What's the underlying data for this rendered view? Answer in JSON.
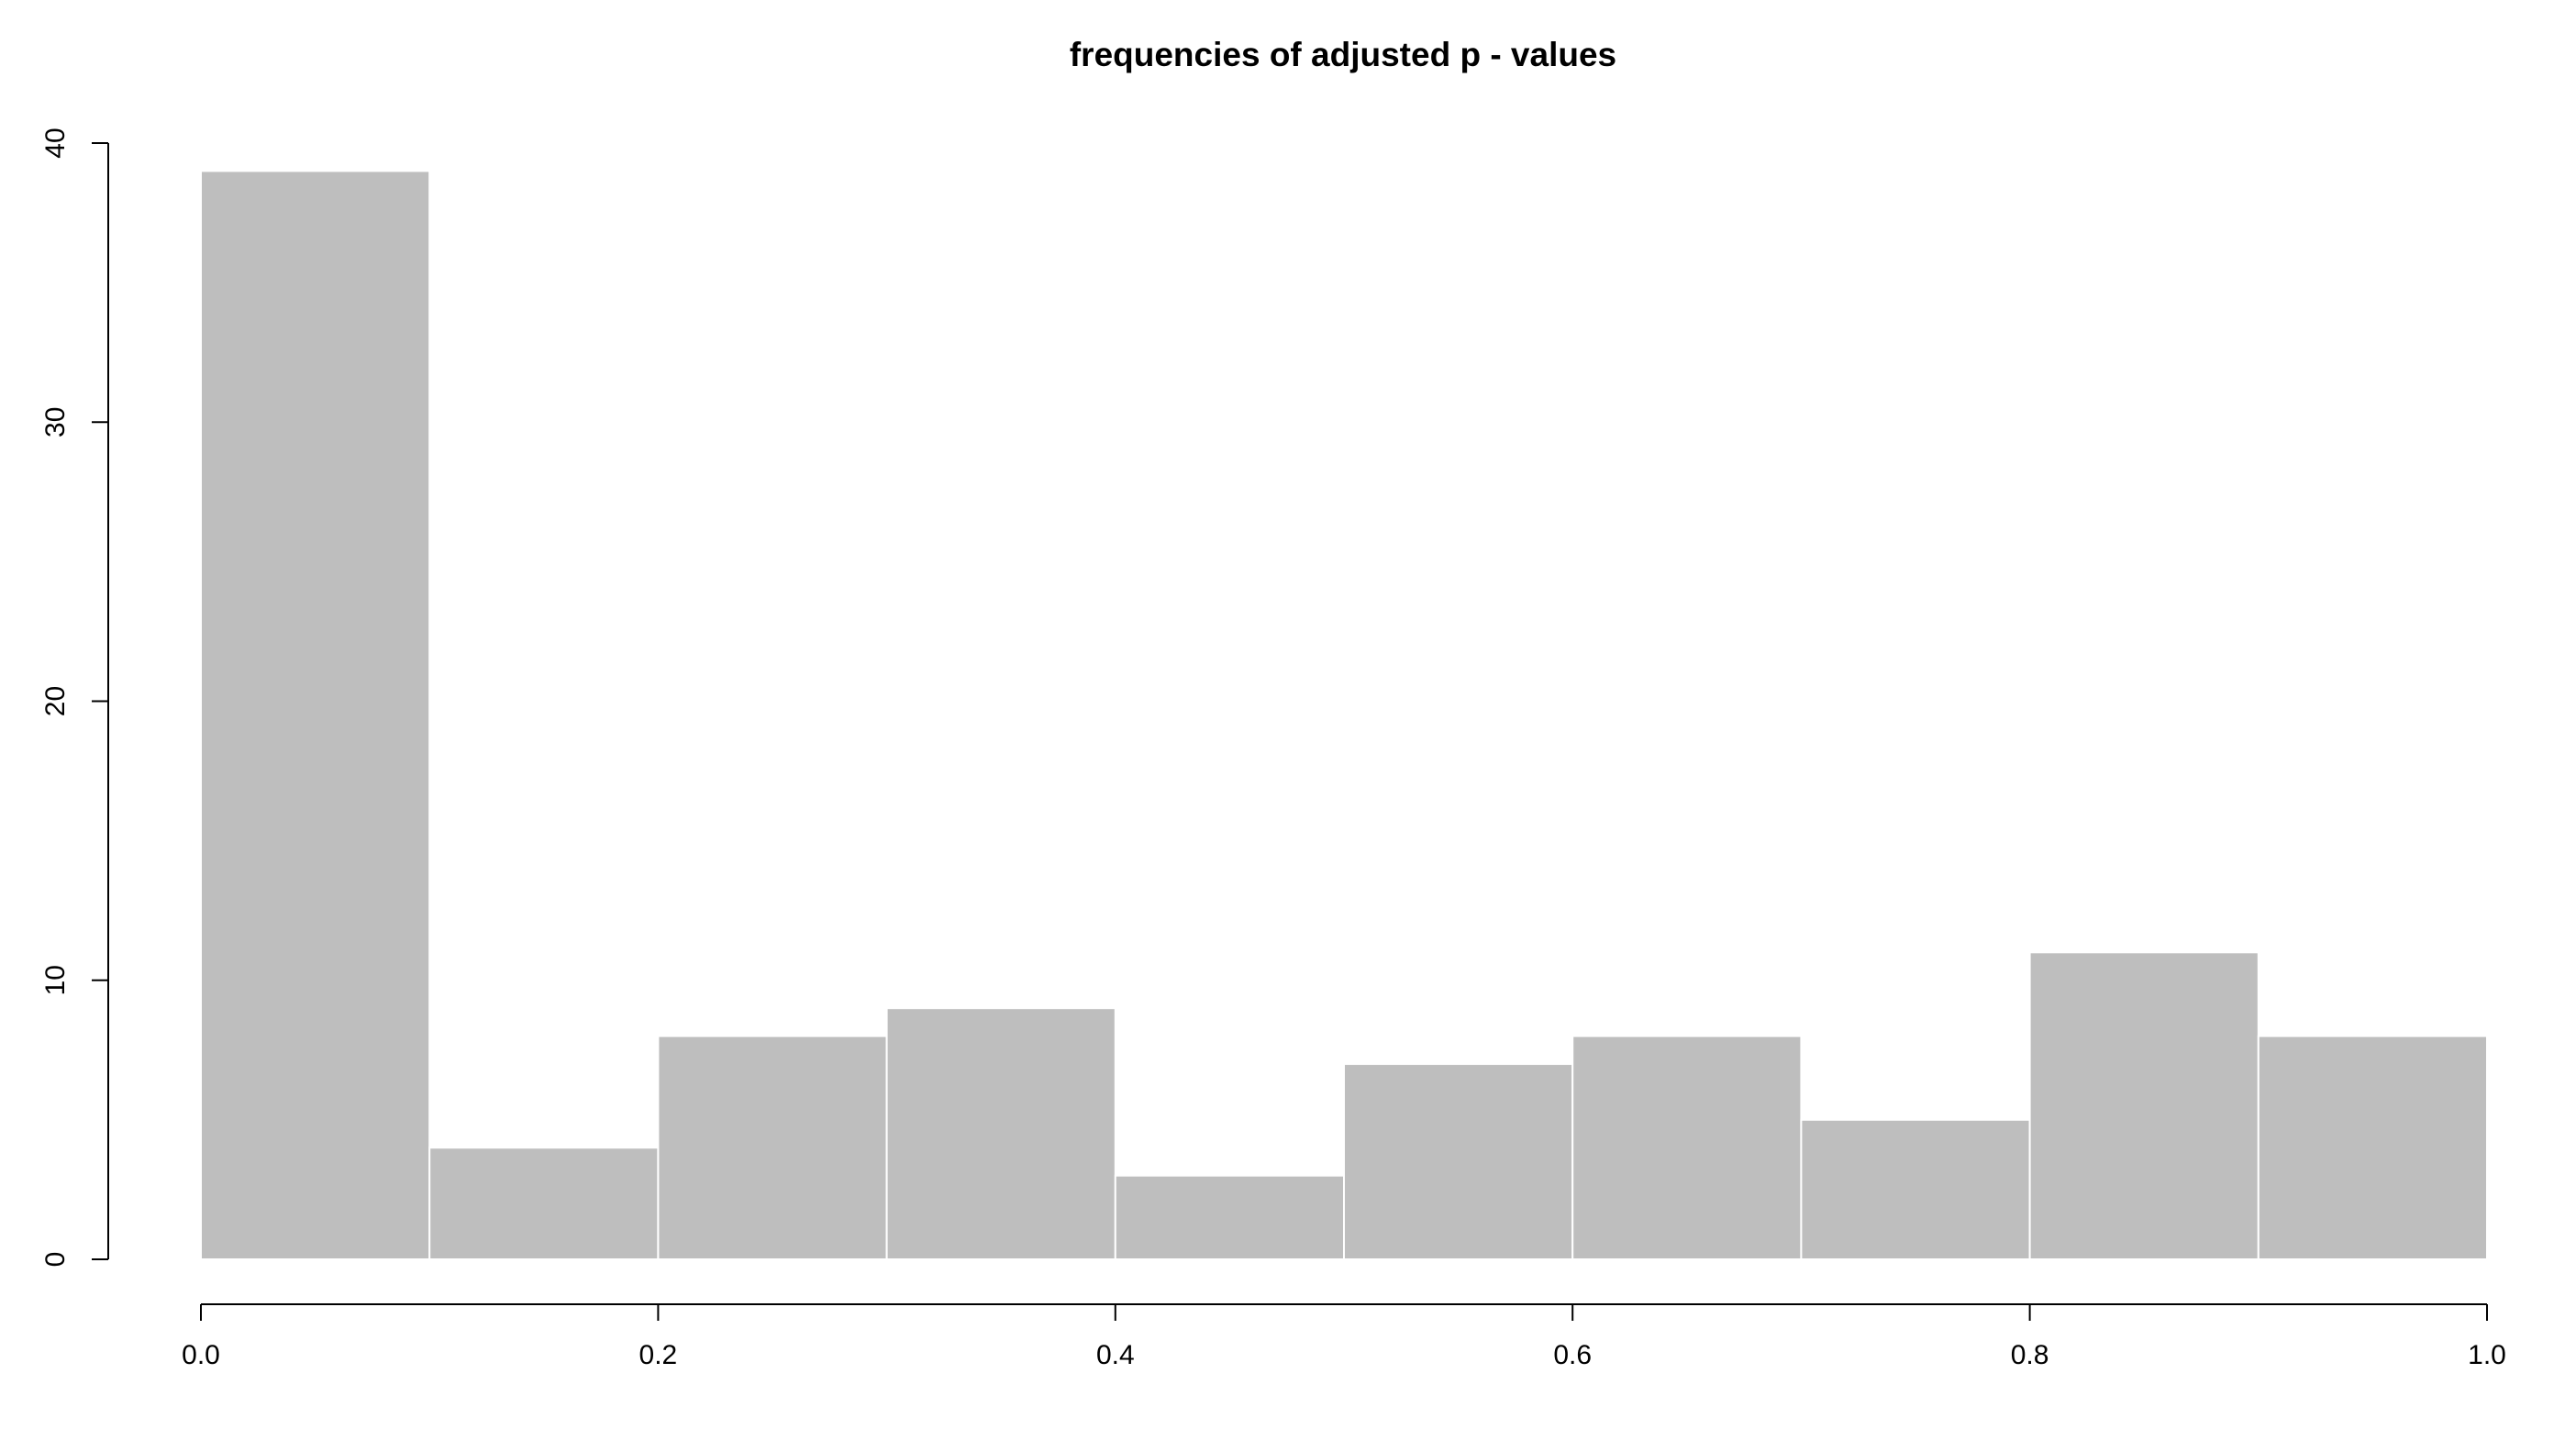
{
  "chart_data": {
    "type": "bar",
    "title": "frequencies of adjusted p - values",
    "xlabel": "",
    "ylabel": "",
    "bins": [
      {
        "start": 0.0,
        "end": 0.1,
        "count": 39
      },
      {
        "start": 0.1,
        "end": 0.2,
        "count": 4
      },
      {
        "start": 0.2,
        "end": 0.3,
        "count": 8
      },
      {
        "start": 0.3,
        "end": 0.4,
        "count": 9
      },
      {
        "start": 0.4,
        "end": 0.5,
        "count": 3
      },
      {
        "start": 0.5,
        "end": 0.6,
        "count": 7
      },
      {
        "start": 0.6,
        "end": 0.7,
        "count": 8
      },
      {
        "start": 0.7,
        "end": 0.8,
        "count": 5
      },
      {
        "start": 0.8,
        "end": 0.9,
        "count": 11
      },
      {
        "start": 0.9,
        "end": 1.0,
        "count": 8
      }
    ],
    "xlim": [
      0,
      1
    ],
    "ylim": [
      0,
      40
    ],
    "x_ticks": [
      {
        "value": 0.0,
        "label": "0.0"
      },
      {
        "value": 0.2,
        "label": "0.2"
      },
      {
        "value": 0.4,
        "label": "0.4"
      },
      {
        "value": 0.6,
        "label": "0.6"
      },
      {
        "value": 0.8,
        "label": "0.8"
      },
      {
        "value": 1.0,
        "label": "1.0"
      }
    ],
    "y_ticks": [
      {
        "value": 0,
        "label": "0"
      },
      {
        "value": 10,
        "label": "10"
      },
      {
        "value": 20,
        "label": "20"
      },
      {
        "value": 30,
        "label": "30"
      },
      {
        "value": 40,
        "label": "40"
      }
    ],
    "grid": false,
    "legend": "none",
    "colors": {
      "bar_fill": "#bebebe",
      "bar_border": "#ffffff",
      "axis": "#000000"
    }
  }
}
